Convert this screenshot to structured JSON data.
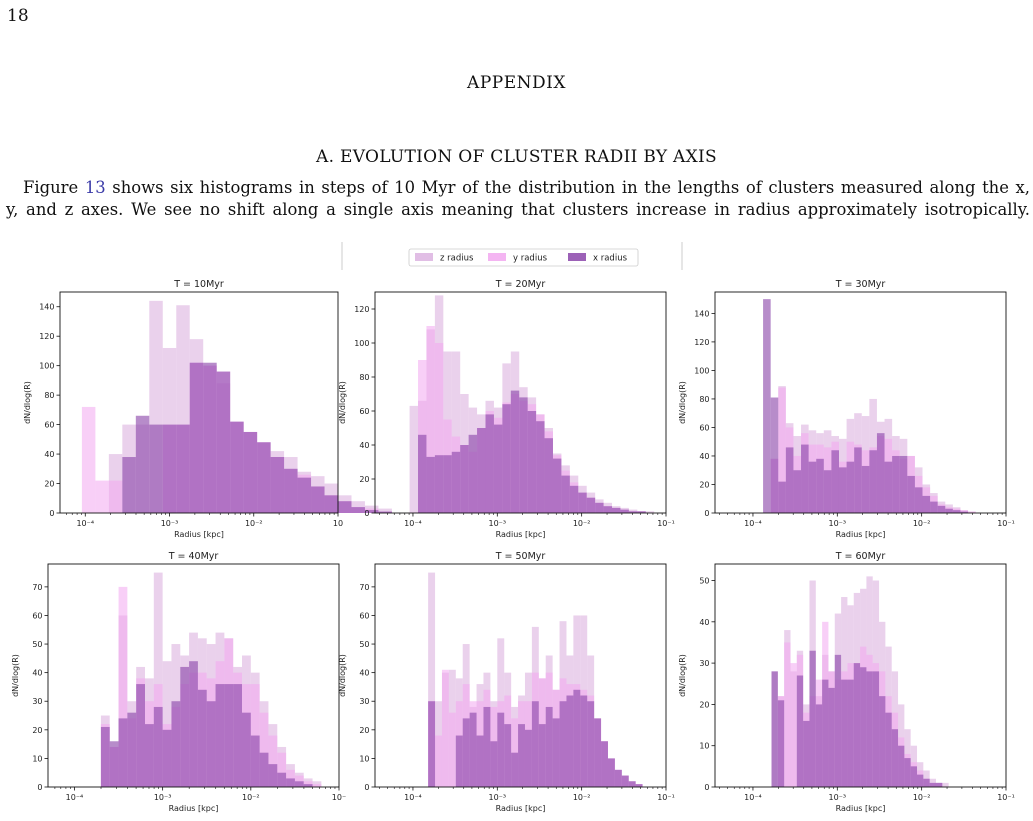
{
  "page": {
    "page_number": "18",
    "appendix_heading": "APPENDIX",
    "section_heading": "A. EVOLUTION OF CLUSTER RADII BY AXIS",
    "para_a": "Figure ",
    "para_link": "13",
    "para_b": " shows six histograms in steps of 10 Myr of the distribution in the lengths of clusters measured along the x,",
    "para_line2": "y, and z axes. We see no shift along a single axis meaning that clusters increase in radius approximately isotropically."
  },
  "colors": {
    "z": "#dcb3e0",
    "y": "#f2a8f0",
    "x": "#8b45aa"
  },
  "chart_data": [
    {
      "type": "bar",
      "title": "T = 10Myr",
      "xlabel": "Radius [kpc]",
      "ylabel": "dN/dlog(R)",
      "xscale": "log",
      "xlim_exp": [
        -4.3,
        -1.0
      ],
      "ylim": [
        0,
        150
      ],
      "yticks": [
        0,
        20,
        40,
        60,
        80,
        100,
        120,
        140
      ],
      "xticks": [
        {
          "exp": -4,
          "label": "10⁻⁴"
        },
        {
          "exp": -3,
          "label": "10⁻³"
        },
        {
          "exp": -2,
          "label": "10⁻²"
        },
        {
          "exp": -1,
          "label": "10"
        }
      ],
      "legend": "top-center",
      "series": [
        {
          "name": "z radius",
          "x_start_exp": -4.2,
          "bin_width_exp": 0.16,
          "values": [
            0,
            0,
            0,
            40,
            60,
            60,
            144,
            112,
            141,
            118,
            100,
            88,
            62,
            55,
            48,
            42,
            38,
            28,
            25,
            20,
            12,
            8,
            5,
            3
          ]
        },
        {
          "name": "y radius",
          "x_start_exp": -4.2,
          "bin_width_exp": 0.16,
          "values": [
            0,
            72,
            22,
            22,
            0,
            0,
            0,
            60,
            60,
            102,
            100,
            96,
            62,
            55,
            48,
            38,
            30,
            26,
            18,
            12,
            8,
            4,
            3,
            1
          ]
        },
        {
          "name": "x radius",
          "x_start_exp": -4.2,
          "bin_width_exp": 0.16,
          "values": [
            0,
            0,
            0,
            0,
            38,
            66,
            60,
            60,
            60,
            102,
            102,
            96,
            62,
            55,
            48,
            38,
            30,
            24,
            18,
            12,
            8,
            4,
            2,
            1
          ]
        }
      ]
    },
    {
      "type": "bar",
      "title": "T = 20Myr",
      "xlabel": "Radius [kpc]",
      "ylabel": "dN/dlog(R)",
      "xscale": "log",
      "xlim_exp": [
        -4.45,
        -1.0
      ],
      "ylim": [
        0,
        130
      ],
      "yticks": [
        0,
        20,
        40,
        60,
        80,
        100,
        120
      ],
      "xticks": [
        {
          "exp": -4,
          "label": "10⁻⁴"
        },
        {
          "exp": -3,
          "label": "10⁻³"
        },
        {
          "exp": -2,
          "label": "10⁻²"
        },
        {
          "exp": -1,
          "label": "10⁻¹"
        }
      ],
      "series": [
        {
          "name": "z radius",
          "x_start_exp": -4.04,
          "bin_width_exp": 0.1,
          "values": [
            63,
            66,
            108,
            128,
            95,
            95,
            70,
            62,
            58,
            66,
            62,
            88,
            95,
            74,
            68,
            58,
            50,
            35,
            28,
            22,
            16,
            12,
            8,
            6,
            4,
            3,
            2,
            1,
            1
          ]
        },
        {
          "name": "y radius",
          "x_start_exp": -4.04,
          "bin_width_exp": 0.1,
          "values": [
            0,
            90,
            110,
            100,
            55,
            45,
            40,
            36,
            50,
            60,
            56,
            65,
            70,
            66,
            64,
            58,
            48,
            34,
            25,
            18,
            12,
            9,
            6,
            4,
            3,
            2,
            1,
            1,
            0
          ]
        },
        {
          "name": "x radius",
          "x_start_exp": -4.04,
          "bin_width_exp": 0.1,
          "values": [
            0,
            46,
            33,
            34,
            34,
            36,
            40,
            46,
            50,
            58,
            52,
            64,
            72,
            68,
            60,
            54,
            44,
            32,
            22,
            16,
            12,
            9,
            6,
            4,
            3,
            2,
            1,
            1,
            0
          ]
        }
      ]
    },
    {
      "type": "bar",
      "title": "T = 30Myr",
      "xlabel": "Radius [kpc]",
      "ylabel": "dN/dlog(R)",
      "xscale": "log",
      "xlim_exp": [
        -4.45,
        -1.0
      ],
      "ylim": [
        0,
        155
      ],
      "yticks": [
        0,
        20,
        40,
        60,
        80,
        100,
        120,
        140
      ],
      "xticks": [
        {
          "exp": -4,
          "label": "10⁻⁴"
        },
        {
          "exp": -3,
          "label": "10⁻³"
        },
        {
          "exp": -2,
          "label": "10⁻²"
        },
        {
          "exp": -1,
          "label": "10⁻¹"
        }
      ],
      "series": [
        {
          "name": "z radius",
          "x_start_exp": -3.88,
          "bin_width_exp": 0.09,
          "values": [
            0,
            38,
            89,
            63,
            54,
            62,
            58,
            56,
            58,
            54,
            52,
            66,
            70,
            68,
            80,
            64,
            66,
            54,
            52,
            40,
            32,
            20,
            14,
            8,
            6,
            4,
            2,
            1
          ]
        },
        {
          "name": "y radius",
          "x_start_exp": -3.88,
          "bin_width_exp": 0.09,
          "values": [
            0,
            38,
            88,
            60,
            40,
            56,
            48,
            48,
            46,
            50,
            36,
            50,
            48,
            44,
            46,
            54,
            52,
            44,
            38,
            40,
            26,
            18,
            12,
            6,
            4,
            3,
            2,
            1
          ]
        },
        {
          "name": "x radius",
          "x_start_exp": -3.88,
          "bin_width_exp": 0.09,
          "values": [
            150,
            81,
            22,
            46,
            30,
            48,
            36,
            38,
            30,
            44,
            32,
            36,
            46,
            33,
            44,
            56,
            36,
            40,
            40,
            26,
            18,
            12,
            8,
            5,
            3,
            2,
            1,
            0
          ]
        }
      ]
    },
    {
      "type": "bar",
      "title": "T = 40Myr",
      "xlabel": "Radius [kpc]",
      "ylabel": "dN/dlog(R)",
      "xscale": "log",
      "xlim_exp": [
        -4.3,
        -1.0
      ],
      "ylim": [
        0,
        78
      ],
      "yticks": [
        0,
        10,
        20,
        30,
        40,
        50,
        60,
        70
      ],
      "xticks": [
        {
          "exp": -4,
          "label": "10⁻⁴"
        },
        {
          "exp": -3,
          "label": "10⁻³"
        },
        {
          "exp": -2,
          "label": "10⁻²"
        },
        {
          "exp": -1,
          "label": "10⁻"
        }
      ],
      "series": [
        {
          "name": "z radius",
          "x_start_exp": -3.7,
          "bin_width_exp": 0.1,
          "values": [
            25,
            14,
            60,
            30,
            42,
            38,
            75,
            44,
            50,
            46,
            54,
            52,
            50,
            54,
            52,
            42,
            46,
            40,
            30,
            22,
            14,
            8,
            5,
            3,
            2
          ]
        },
        {
          "name": "y radius",
          "x_start_exp": -3.7,
          "bin_width_exp": 0.1,
          "values": [
            22,
            14,
            70,
            24,
            38,
            30,
            36,
            22,
            28,
            36,
            40,
            40,
            38,
            44,
            52,
            40,
            36,
            36,
            26,
            18,
            12,
            6,
            4,
            2,
            1
          ]
        },
        {
          "name": "x radius",
          "x_start_exp": -3.7,
          "bin_width_exp": 0.1,
          "values": [
            21,
            16,
            24,
            26,
            36,
            22,
            28,
            20,
            30,
            42,
            44,
            34,
            30,
            36,
            36,
            36,
            26,
            18,
            12,
            8,
            5,
            3,
            2,
            1,
            0
          ]
        }
      ]
    },
    {
      "type": "bar",
      "title": "T = 50Myr",
      "xlabel": "Radius [kpc]",
      "ylabel": "dN/dlog(R)",
      "xscale": "log",
      "xlim_exp": [
        -4.45,
        -1.0
      ],
      "ylim": [
        0,
        78
      ],
      "yticks": [
        0,
        10,
        20,
        30,
        40,
        50,
        60,
        70
      ],
      "xticks": [
        {
          "exp": -4,
          "label": "10⁻⁴"
        },
        {
          "exp": -3,
          "label": "10⁻³"
        },
        {
          "exp": -2,
          "label": "10⁻²"
        },
        {
          "exp": -1,
          "label": "10⁻¹"
        }
      ],
      "series": [
        {
          "name": "z radius",
          "x_start_exp": -3.82,
          "bin_width_exp": 0.082,
          "values": [
            75,
            30,
            40,
            41,
            38,
            50,
            28,
            36,
            40,
            30,
            52,
            40,
            28,
            32,
            40,
            56,
            38,
            46,
            34,
            58,
            46,
            60,
            60,
            46,
            24,
            16,
            10,
            6,
            4,
            2,
            1
          ]
        },
        {
          "name": "y radius",
          "x_start_exp": -3.82,
          "bin_width_exp": 0.082,
          "values": [
            30,
            18,
            41,
            26,
            30,
            36,
            30,
            30,
            34,
            28,
            30,
            32,
            24,
            30,
            30,
            40,
            38,
            40,
            34,
            38,
            36,
            36,
            34,
            32,
            24,
            16,
            10,
            6,
            4,
            2,
            1
          ]
        },
        {
          "name": "x radius",
          "x_start_exp": -3.82,
          "bin_width_exp": 0.082,
          "values": [
            30,
            0,
            0,
            0,
            18,
            24,
            26,
            18,
            28,
            16,
            26,
            22,
            12,
            22,
            20,
            30,
            22,
            28,
            24,
            30,
            32,
            34,
            32,
            30,
            24,
            16,
            10,
            6,
            4,
            2,
            1
          ]
        }
      ]
    },
    {
      "type": "bar",
      "title": "T = 60Myr",
      "xlabel": "Radius [kpc]",
      "ylabel": "dN/dlog(R)",
      "xscale": "log",
      "xlim_exp": [
        -4.45,
        -1.0
      ],
      "ylim": [
        0,
        54
      ],
      "yticks": [
        0,
        10,
        20,
        30,
        40,
        50
      ],
      "xticks": [
        {
          "exp": -4,
          "label": "10⁻⁴"
        },
        {
          "exp": -3,
          "label": "10⁻³"
        },
        {
          "exp": -2,
          "label": "10⁻²"
        },
        {
          "exp": -1,
          "label": "10⁻¹"
        }
      ],
      "series": [
        {
          "name": "z radius",
          "x_start_exp": -3.78,
          "bin_width_exp": 0.075,
          "values": [
            28,
            22,
            38,
            28,
            33,
            20,
            50,
            22,
            32,
            28,
            42,
            46,
            44,
            47,
            48,
            51,
            50,
            40,
            34,
            28,
            20,
            14,
            10,
            6,
            4,
            2,
            1,
            1
          ]
        },
        {
          "name": "y radius",
          "x_start_exp": -3.78,
          "bin_width_exp": 0.075,
          "values": [
            0,
            22,
            35,
            30,
            32,
            18,
            22,
            26,
            40,
            28,
            26,
            28,
            30,
            30,
            34,
            32,
            30,
            28,
            22,
            18,
            12,
            8,
            6,
            4,
            2,
            1,
            1,
            0
          ]
        },
        {
          "name": "x radius",
          "x_start_exp": -3.78,
          "bin_width_exp": 0.075,
          "values": [
            28,
            21,
            0,
            0,
            27,
            16,
            33,
            20,
            26,
            24,
            32,
            26,
            26,
            30,
            29,
            28,
            28,
            22,
            18,
            14,
            10,
            7,
            5,
            3,
            2,
            1,
            1,
            0
          ]
        }
      ]
    }
  ]
}
